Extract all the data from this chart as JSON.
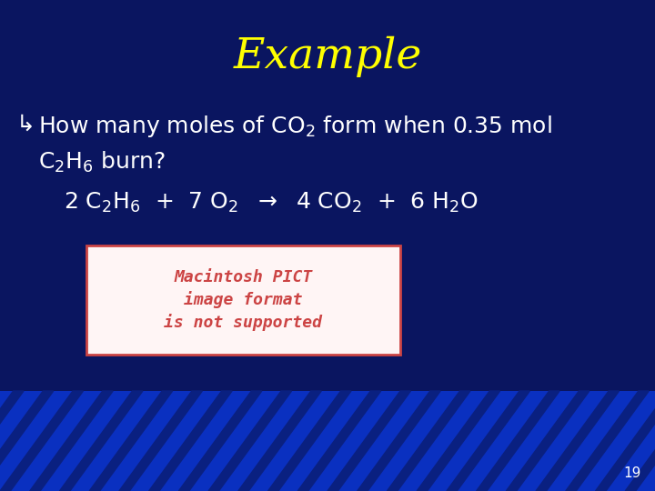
{
  "title": "Example",
  "title_color": "#FFFF00",
  "title_fontsize": 34,
  "bg_color": "#0A1560",
  "text_color": "#FFFFFF",
  "text_fontsize": 18,
  "pict_box_text": "Macintosh PICT\nimage format\nis not supported",
  "pict_box_color": "#CC4444",
  "pict_box_bg": "#FFF5F5",
  "pict_box_border": "#CC4444",
  "page_number": "19",
  "stripe_color_light": "#1A5AE8",
  "stripe_color_dark": "#0A2080",
  "bg_color_bottom": "#0A30C0"
}
